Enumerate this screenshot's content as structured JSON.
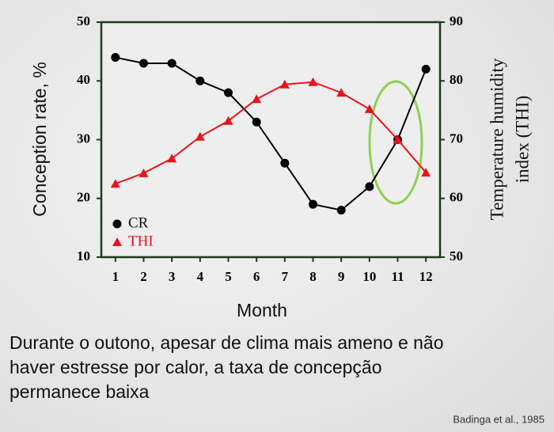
{
  "chart_data": {
    "type": "line",
    "xlabel": "Month",
    "ylabel": "Conception rate, %",
    "y2label": [
      "Temperature humidity",
      "index (THI)"
    ],
    "x": [
      1,
      2,
      3,
      4,
      5,
      6,
      7,
      8,
      9,
      10,
      11,
      12
    ],
    "xlim": [
      0.5,
      12.5
    ],
    "xticks": [
      1,
      2,
      3,
      4,
      5,
      6,
      7,
      8,
      9,
      10,
      11,
      12
    ],
    "ylim": [
      10,
      50
    ],
    "yticks": [
      10,
      20,
      30,
      40,
      50
    ],
    "y2lim": [
      50,
      90
    ],
    "y2ticks": [
      50,
      60,
      70,
      80,
      90
    ],
    "legend": "lower left",
    "series": [
      {
        "name": "CR",
        "color": "#000000",
        "marker": "circle",
        "values": [
          44,
          43,
          43,
          40,
          38,
          33,
          26,
          19,
          18,
          22,
          30,
          42
        ]
      },
      {
        "name": "THI",
        "color": "#e8141b",
        "marker": "triangle",
        "axis": "y2",
        "values": [
          62.5,
          64.3,
          66.8,
          70.5,
          73.2,
          76.9,
          79.4,
          79.8,
          78,
          75.2,
          70,
          64.4
        ]
      }
    ]
  },
  "caption": [
    "Durante o outono, apesar de  clima mais ameno e não",
    "haver estresse por calor, a taxa de concepção",
    "permanece baixa"
  ],
  "source": "Badinga et al., 1985"
}
